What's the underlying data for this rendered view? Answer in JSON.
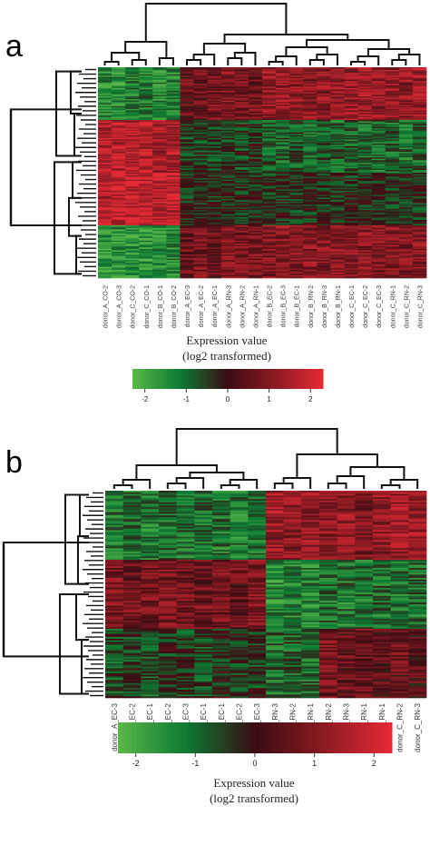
{
  "panel_a": {
    "label": "a"
  },
  "panel_b": {
    "label": "b"
  },
  "chart_data": [
    {
      "type": "heatmap",
      "panel": "a",
      "columns": [
        "donor_A_CO-2",
        "donor_A_CO-3",
        "donor_C_CO-2",
        "donor_C_CO-1",
        "donor_B_CO-1",
        "donor_B_CO-2",
        "donor_A_EC-3",
        "donor_A_EC-2",
        "donor_A_EC-1",
        "donor_A_RN-3",
        "donor_A_RN-2",
        "donor_A_RN-1",
        "donor_B_EC-2",
        "donor_B_EC-3",
        "donor_B_EC-1",
        "donor_B_RN-2",
        "donor_B_RN-3",
        "donor_B_RN-1",
        "donor_C_EC-1",
        "donor_C_EC-2",
        "donor_C_EC-3",
        "donor_C_RN-1",
        "donor_C_RN-2",
        "donor_C_RN-3"
      ],
      "row_blocks": [
        {
          "rows": "top",
          "values": [
            -1.5,
            -1.5,
            -1.2,
            -1.2,
            -1.4,
            -1.4,
            0.6,
            0.6,
            0.8,
            0.9,
            0.9,
            0.7,
            1.2,
            1.3,
            1.2,
            1.1,
            1.2,
            1.1,
            1.3,
            1.4,
            1.2,
            1.3,
            1.2,
            1.4
          ]
        },
        {
          "rows": "upper-middle",
          "values": [
            1.6,
            1.6,
            1.7,
            1.7,
            1.5,
            1.5,
            -0.5,
            -0.5,
            -0.6,
            -0.4,
            -0.5,
            -0.4,
            -0.9,
            -0.9,
            -0.8,
            -0.9,
            -0.8,
            -0.9,
            -0.9,
            -1.0,
            -0.9,
            -0.9,
            -1.0,
            -0.9
          ]
        },
        {
          "rows": "middle",
          "values": [
            1.8,
            1.8,
            1.9,
            1.9,
            1.8,
            1.8,
            -0.3,
            -0.2,
            -0.4,
            -0.2,
            -0.3,
            -0.3,
            -0.4,
            -0.3,
            -0.4,
            -0.3,
            -0.4,
            -0.3,
            -0.4,
            -0.3,
            -0.4,
            -0.3,
            -0.3,
            -0.4
          ]
        },
        {
          "rows": "lower",
          "values": [
            -1.6,
            -1.6,
            -1.7,
            -1.7,
            -1.5,
            -1.5,
            0.7,
            0.8,
            0.6,
            0.9,
            0.8,
            0.9,
            1.0,
            1.1,
            1.0,
            1.1,
            1.0,
            1.1,
            1.0,
            1.1,
            1.0,
            1.1,
            1.0,
            1.1
          ]
        }
      ],
      "colorbar": {
        "title_line1": "Expression value",
        "title_line2": "(log2 transformed)",
        "range": [
          -2.3,
          2.3
        ],
        "ticks": [
          "-2",
          "-1",
          "0",
          "1",
          "2"
        ],
        "colors": [
          "#5ab848",
          "#0d7a33",
          "#3a0c12",
          "#8c1a22",
          "#e52a35"
        ]
      }
    },
    {
      "type": "heatmap",
      "panel": "b",
      "columns": [
        "donor_A_EC-3",
        "donor_A_EC-2",
        "donor_A_EC-1",
        "donor_B_EC-2",
        "donor_B_EC-3",
        "donor_B_EC-1",
        "donor_C_EC-1",
        "donor_C_EC-2",
        "donor_C_EC-3",
        "donor_A_RN-3",
        "donor_A_RN-2",
        "donor_A_RN-1",
        "donor_B_RN-2",
        "donor_B_RN-3",
        "donor_B_RN-1",
        "donor_C_RN-1",
        "donor_C_RN-2",
        "donor_C_RN-3"
      ],
      "row_blocks": [
        {
          "rows": "top",
          "values": [
            -1.2,
            -1.1,
            -1.2,
            -1.0,
            -1.1,
            -1.0,
            -1.1,
            -1.2,
            -1.1,
            1.3,
            1.2,
            1.3,
            1.1,
            1.2,
            1.0,
            1.2,
            1.3,
            1.2
          ]
        },
        {
          "rows": "middle",
          "values": [
            0.8,
            0.7,
            0.8,
            0.9,
            0.8,
            0.7,
            0.8,
            0.7,
            0.9,
            -1.4,
            -1.3,
            -1.4,
            -1.1,
            -1.2,
            -1.1,
            -1.0,
            -1.1,
            -1.0
          ]
        },
        {
          "rows": "bottom",
          "values": [
            -0.6,
            -0.5,
            -0.7,
            -0.4,
            -0.5,
            -0.6,
            -0.3,
            -0.4,
            -0.5,
            -1.0,
            -0.9,
            -1.0,
            0.8,
            0.6,
            0.7,
            0.5,
            0.6,
            0.4
          ]
        }
      ],
      "colorbar": {
        "title_line1": "Expression value",
        "title_line2": "(log2 transformed)",
        "range": [
          -2.3,
          2.3
        ],
        "ticks": [
          "-2",
          "-1",
          "0",
          "1",
          "2"
        ],
        "colors": [
          "#5ab848",
          "#0d7a33",
          "#3a0c12",
          "#8c1a22",
          "#e52a35"
        ]
      }
    }
  ]
}
